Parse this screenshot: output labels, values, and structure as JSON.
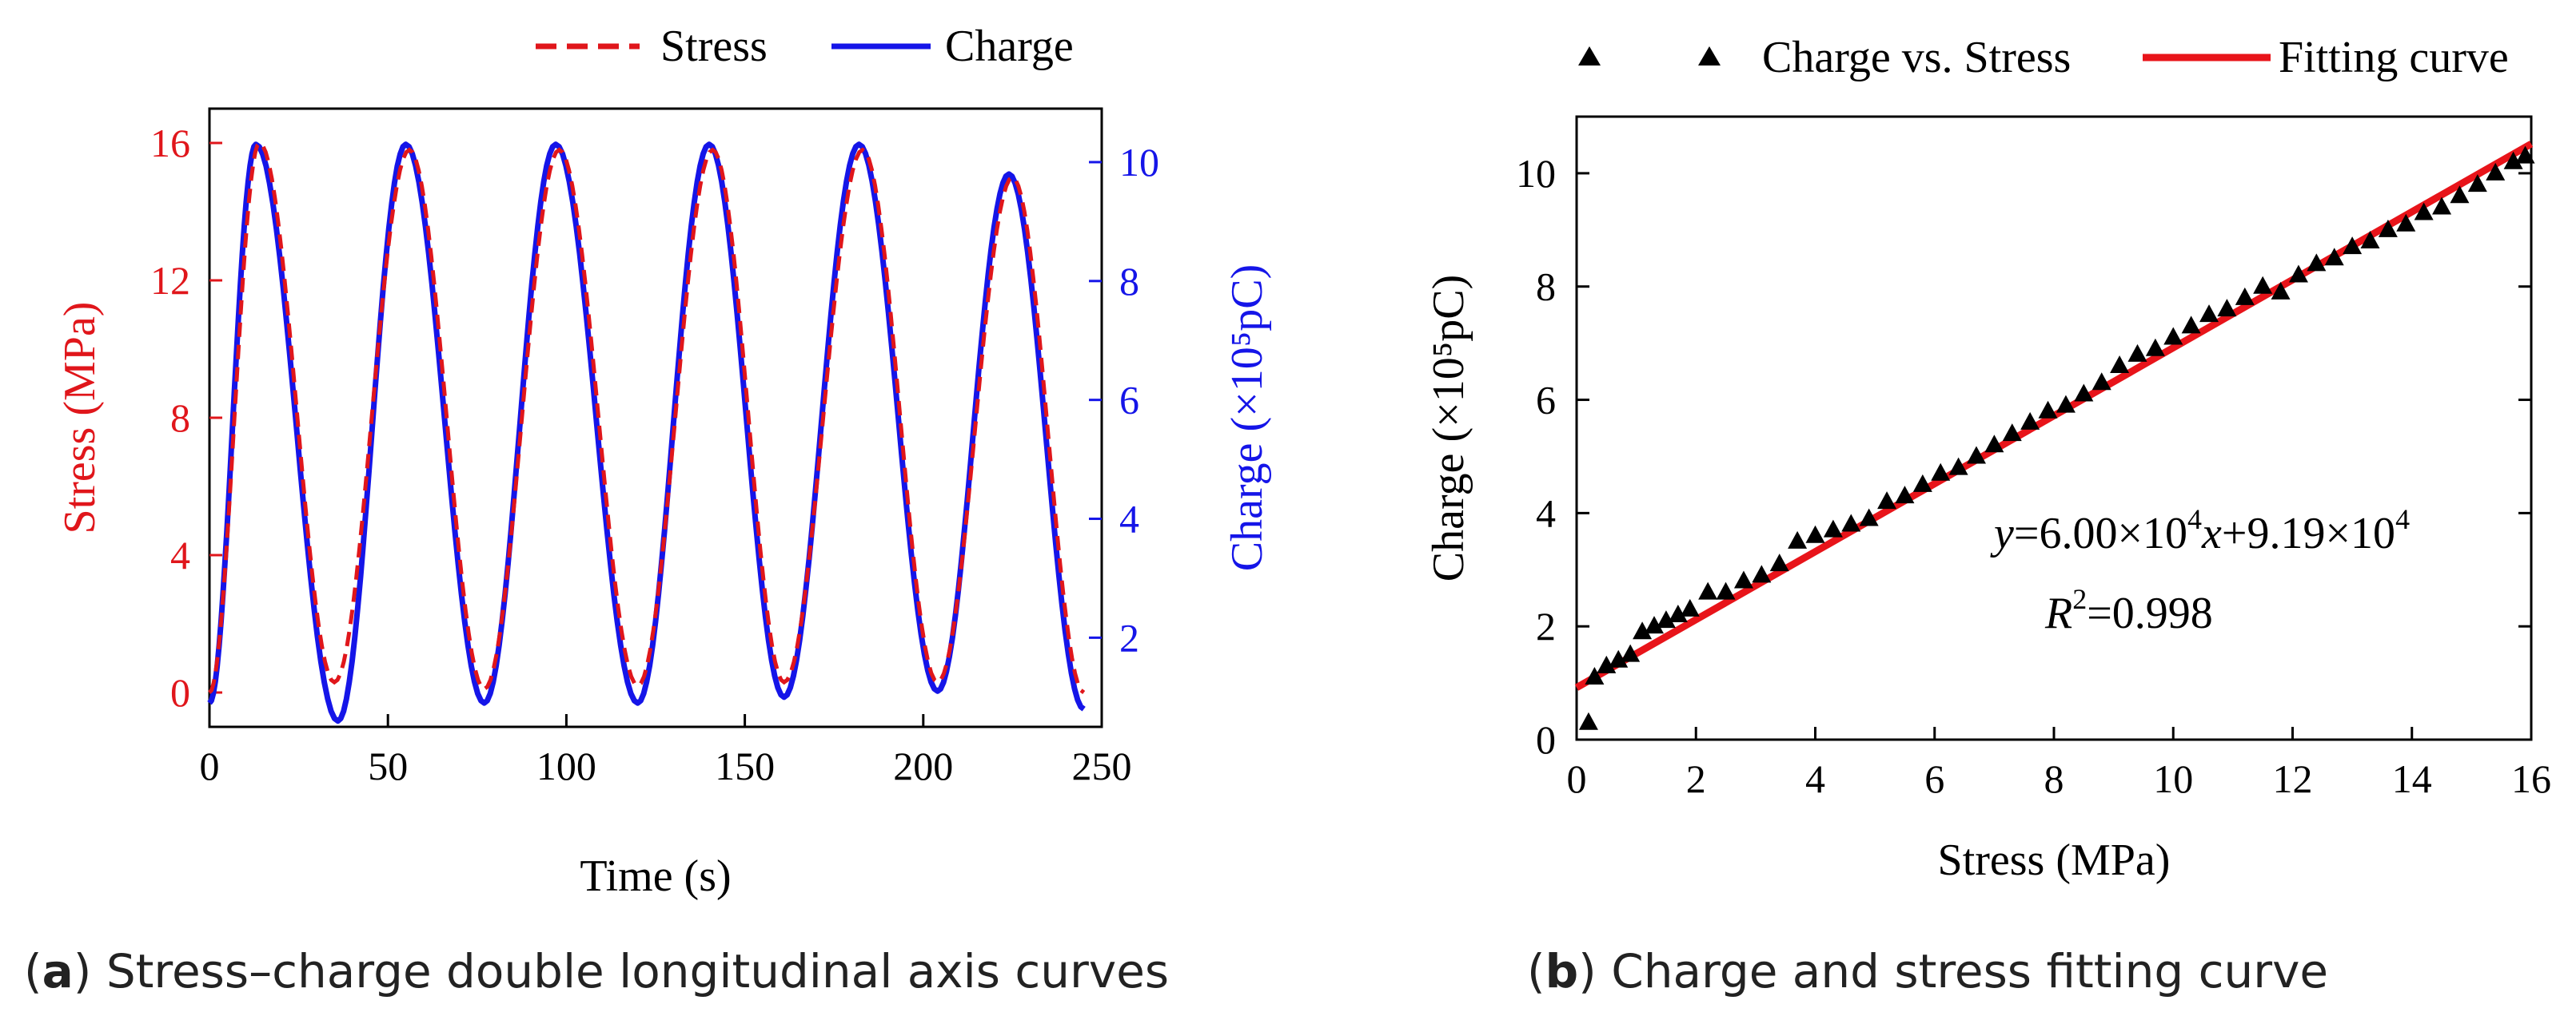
{
  "chart_data": [
    {
      "id": "a",
      "type": "line",
      "xlabel": "Time (s)",
      "ylabel_left": "Stress (MPa)",
      "ylabel_right": "Charge (×10⁵pC)",
      "xlim": [
        0,
        250
      ],
      "ylim_left": [
        -1,
        17
      ],
      "ylim_right": [
        0.5,
        10.9
      ],
      "xticks": [
        0,
        50,
        100,
        150,
        200,
        250
      ],
      "yticks_left": [
        0,
        4,
        8,
        12,
        16
      ],
      "yticks_right": [
        2,
        4,
        6,
        8,
        10
      ],
      "legend": "top",
      "colors": {
        "stress": "#e0161b",
        "charge": "#1515e8"
      },
      "series": [
        {
          "name": "Stress",
          "axis": "left",
          "style": "dashed",
          "x": [
            0,
            14,
            35,
            56,
            77,
            98,
            120,
            141,
            161,
            183,
            204,
            225,
            245
          ],
          "y": [
            0,
            16,
            0.3,
            15.8,
            0.1,
            15.8,
            0.2,
            15.8,
            0.3,
            15.8,
            0.3,
            15.0,
            0
          ]
        },
        {
          "name": "Charge",
          "axis": "right",
          "style": "solid",
          "x": [
            0,
            13,
            36,
            55,
            77,
            97,
            120,
            140,
            161,
            182,
            204,
            224,
            245
          ],
          "y": [
            0.9,
            10.3,
            0.6,
            10.3,
            0.9,
            10.3,
            0.9,
            10.3,
            1.0,
            10.3,
            1.1,
            9.8,
            0.8
          ]
        }
      ],
      "caption_letter": "a",
      "caption_text": " Stress–charge double longitudinal axis curves"
    },
    {
      "id": "b",
      "type": "scatter",
      "xlabel": "Stress (MPa)",
      "ylabel": "Charge (×10⁵pC)",
      "xlim": [
        0,
        16
      ],
      "ylim": [
        0,
        11
      ],
      "xticks": [
        0,
        2,
        4,
        6,
        8,
        10,
        12,
        14,
        16
      ],
      "yticks": [
        0,
        2,
        4,
        6,
        8,
        10
      ],
      "legend": "top",
      "colors": {
        "points": "#000000",
        "fit": "#e8141a"
      },
      "scatter_series": {
        "name": "Charge vs. Stress",
        "x": [
          0.2,
          0.3,
          0.5,
          0.7,
          0.9,
          1.1,
          1.3,
          1.5,
          1.7,
          1.9,
          2.2,
          2.5,
          2.8,
          3.1,
          3.4,
          3.7,
          4.0,
          4.3,
          4.6,
          4.9,
          5.2,
          5.5,
          5.8,
          6.1,
          6.4,
          6.7,
          7.0,
          7.3,
          7.6,
          7.9,
          8.2,
          8.5,
          8.8,
          9.1,
          9.4,
          9.7,
          10.0,
          10.3,
          10.6,
          10.9,
          11.2,
          11.5,
          11.8,
          12.1,
          12.4,
          12.7,
          13.0,
          13.3,
          13.6,
          13.9,
          14.2,
          14.5,
          14.8,
          15.1,
          15.4,
          15.7,
          15.9
        ],
        "y": [
          0.3,
          1.1,
          1.3,
          1.4,
          1.5,
          1.9,
          2.0,
          2.1,
          2.2,
          2.3,
          2.6,
          2.6,
          2.8,
          2.9,
          3.1,
          3.5,
          3.6,
          3.7,
          3.8,
          3.9,
          4.2,
          4.3,
          4.5,
          4.7,
          4.8,
          5.0,
          5.2,
          5.4,
          5.6,
          5.8,
          5.9,
          6.1,
          6.3,
          6.6,
          6.8,
          6.9,
          7.1,
          7.3,
          7.5,
          7.6,
          7.8,
          8.0,
          7.9,
          8.2,
          8.4,
          8.5,
          8.7,
          8.8,
          9.0,
          9.1,
          9.3,
          9.4,
          9.6,
          9.8,
          10.0,
          10.2,
          10.3
        ]
      },
      "fit_series": {
        "name": "Fitting curve",
        "slope": 0.6,
        "intercept": 0.919
      },
      "annotation_eq": {
        "y": "y",
        "part1": "=6.00×10",
        "exp1": "4",
        "x": "x",
        "part2": "+9.19×10",
        "exp2": "4"
      },
      "annotation_r2": {
        "r": "R",
        "exp": "2",
        "value": "=0.998"
      },
      "caption_letter": "b",
      "caption_text": " Charge and stress fitting curve"
    }
  ],
  "labels": {
    "paren_open": "(",
    "paren_close": ")"
  }
}
